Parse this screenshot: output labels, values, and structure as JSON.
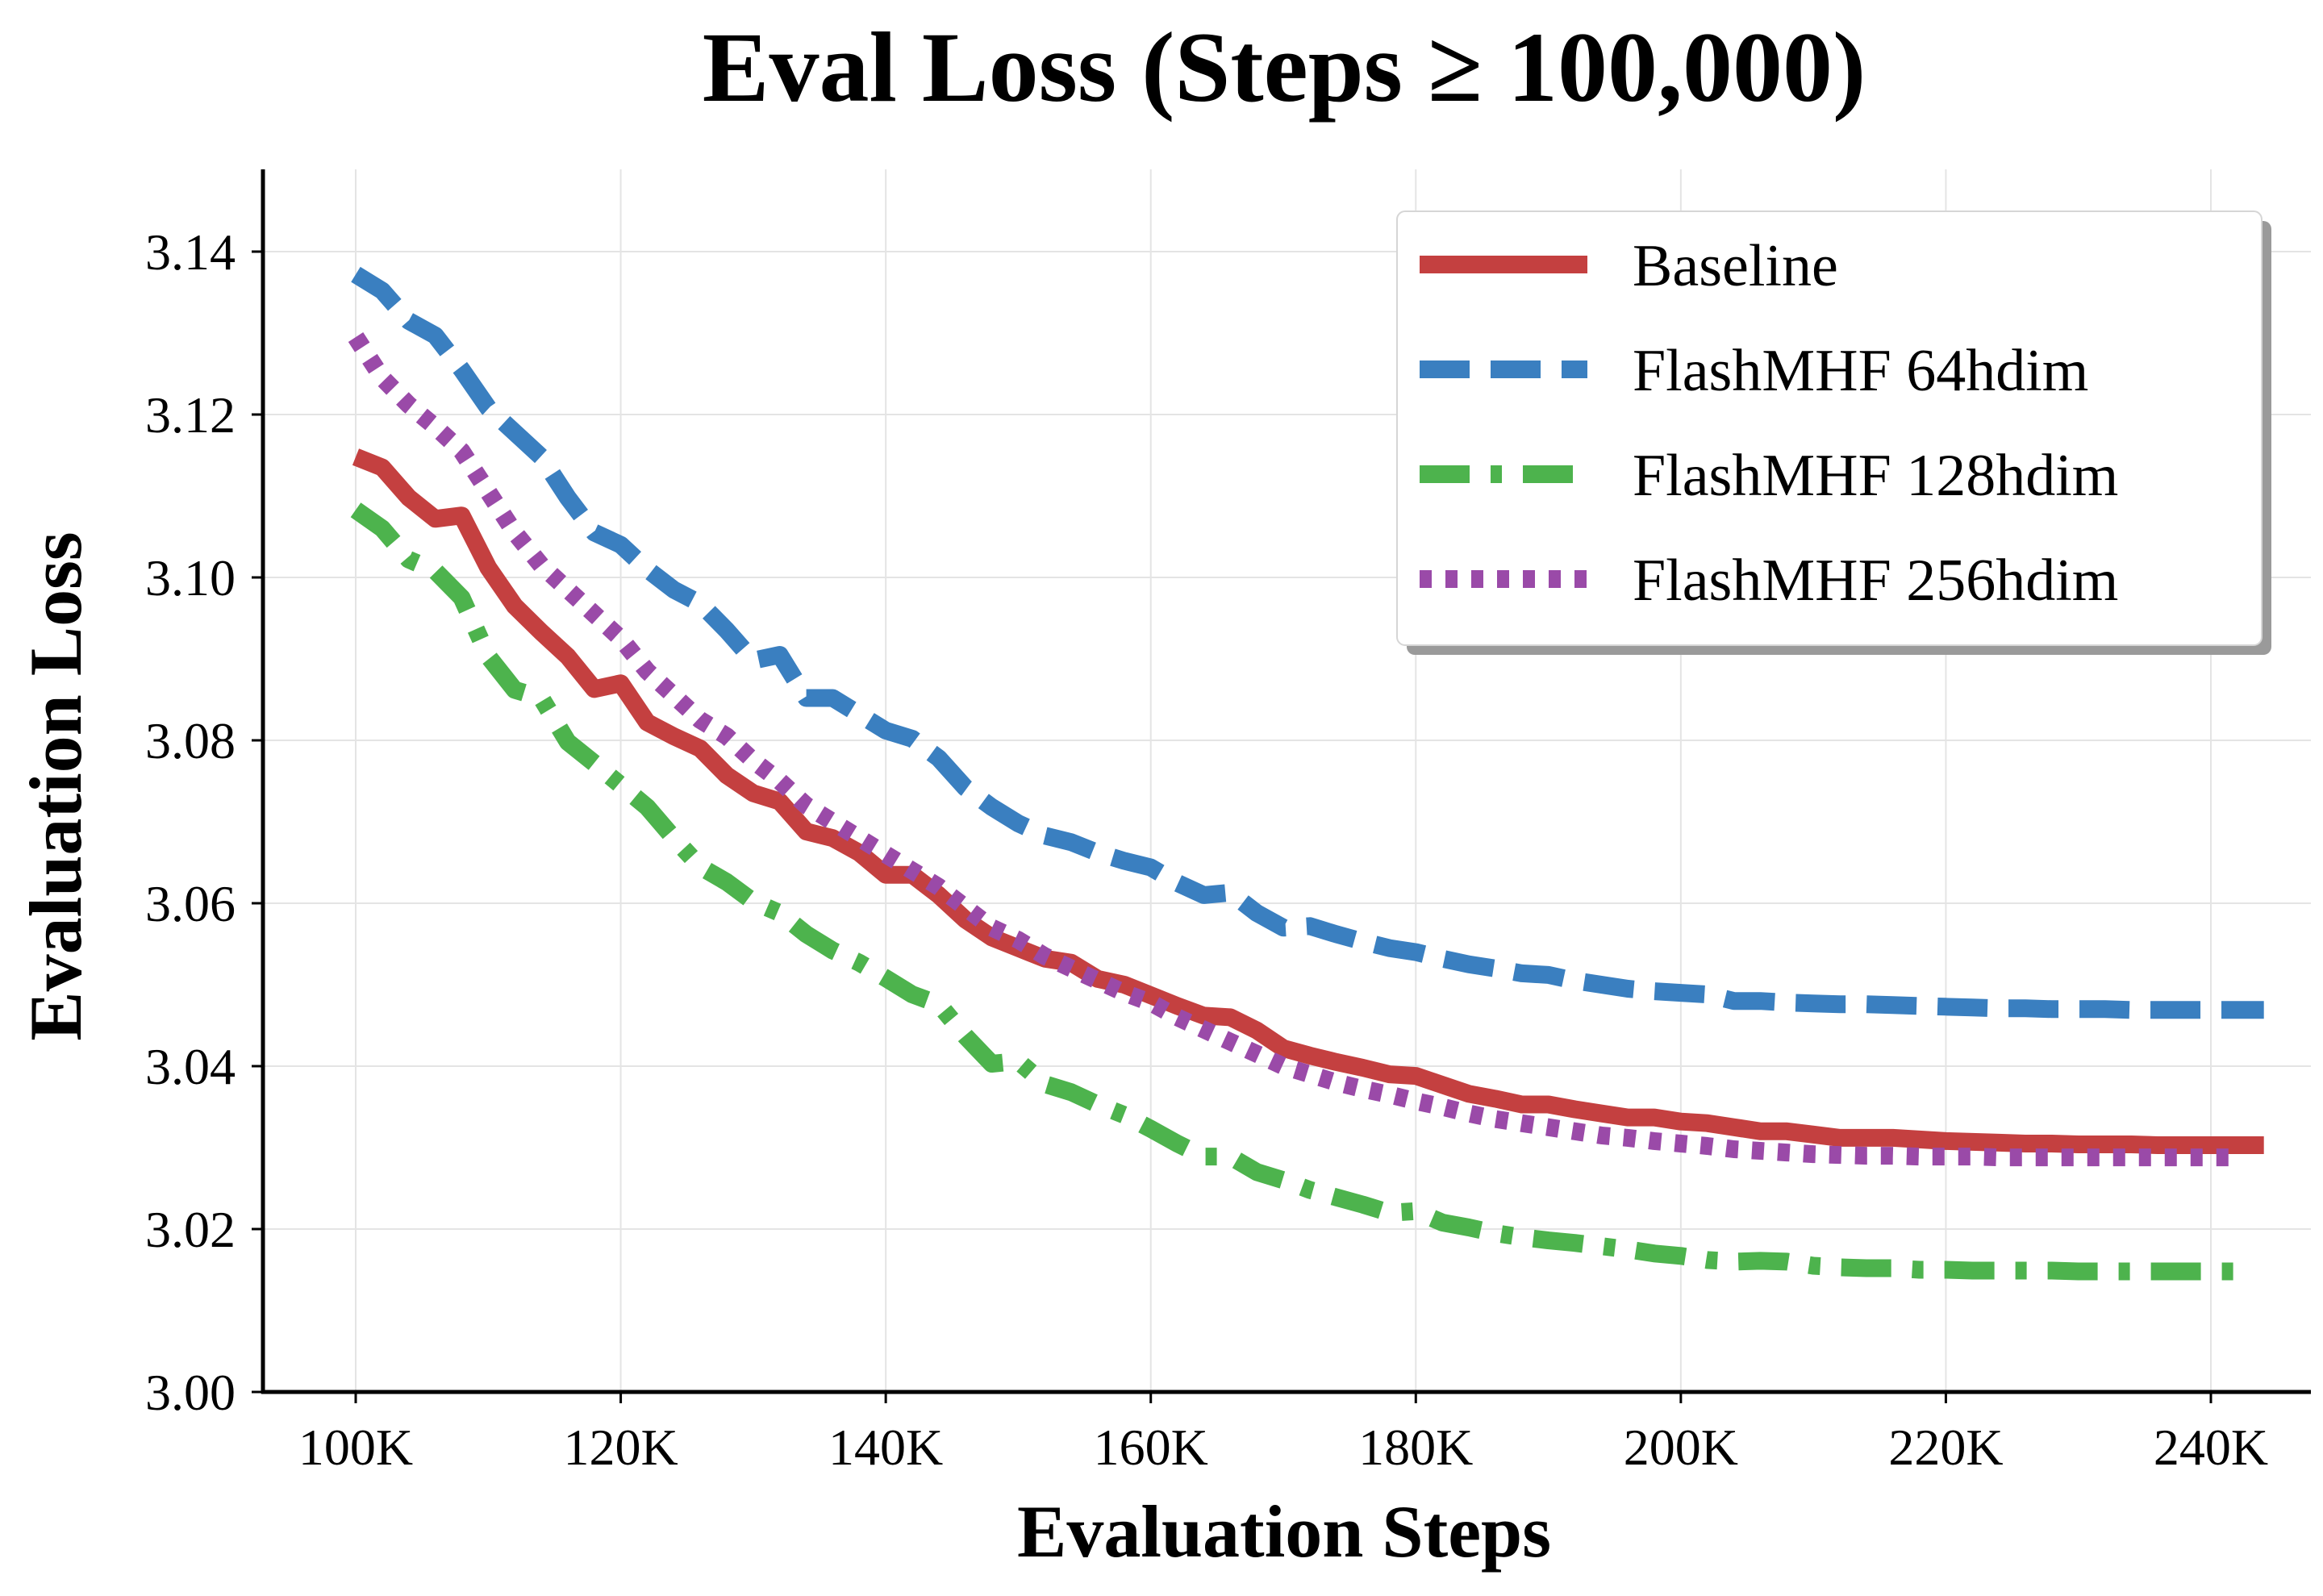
{
  "chart_data": {
    "type": "line",
    "title": "Eval Loss (Steps ≥ 100,000)",
    "xlabel": "Evaluation Steps",
    "ylabel": "Evaluation Loss",
    "xlim": [
      92500,
      253000
    ],
    "ylim": [
      3.0,
      3.15
    ],
    "xticks": [
      100000,
      120000,
      140000,
      160000,
      180000,
      200000,
      220000,
      240000
    ],
    "xtick_labels": [
      "100K",
      "120K",
      "140K",
      "160K",
      "180K",
      "200K",
      "220K",
      "240K"
    ],
    "yticks": [
      3.0,
      3.02,
      3.04,
      3.06,
      3.08,
      3.1,
      3.12,
      3.14
    ],
    "ytick_labels": [
      "3.00",
      "3.02",
      "3.04",
      "3.06",
      "3.08",
      "3.10",
      "3.12",
      "3.14"
    ],
    "grid": true,
    "legend_position": "top-right",
    "series": [
      {
        "name": "Baseline",
        "color": "#c44040",
        "style": "solid",
        "x": [
          100000,
          102000,
          104000,
          106000,
          108000,
          110000,
          112000,
          114000,
          116000,
          118000,
          120000,
          122000,
          124000,
          126000,
          128000,
          130000,
          132000,
          134000,
          136000,
          138000,
          140000,
          142000,
          144000,
          146000,
          148000,
          150000,
          152000,
          154000,
          156000,
          158000,
          160000,
          162000,
          164000,
          166000,
          168000,
          170000,
          172000,
          174000,
          176000,
          178000,
          180000,
          182000,
          184000,
          186000,
          188000,
          190000,
          192000,
          194000,
          196000,
          198000,
          200000,
          202000,
          204000,
          206000,
          208000,
          210000,
          212000,
          214000,
          216000,
          218000,
          220000,
          222000,
          224000,
          226000,
          228000,
          230000,
          232000,
          234000,
          236000,
          238000,
          240000,
          242000,
          244000
        ],
        "y": [
          3.1148,
          3.1135,
          3.1098,
          3.1072,
          3.1076,
          3.1012,
          3.0965,
          3.0933,
          3.0903,
          3.0863,
          3.087,
          3.0822,
          3.0805,
          3.079,
          3.0757,
          3.0735,
          3.0725,
          3.0688,
          3.068,
          3.0662,
          3.0635,
          3.0635,
          3.061,
          3.058,
          3.0558,
          3.0545,
          3.0532,
          3.0527,
          3.0507,
          3.05,
          3.0487,
          3.0474,
          3.0462,
          3.046,
          3.0444,
          3.0422,
          3.0413,
          3.0405,
          3.0398,
          3.039,
          3.0388,
          3.0377,
          3.0366,
          3.036,
          3.0353,
          3.0353,
          3.0347,
          3.0342,
          3.0337,
          3.0337,
          3.0332,
          3.033,
          3.0325,
          3.032,
          3.032,
          3.0316,
          3.0312,
          3.0312,
          3.0312,
          3.031,
          3.0308,
          3.0307,
          3.0306,
          3.0305,
          3.0305,
          3.0304,
          3.0304,
          3.0304,
          3.0303,
          3.0303,
          3.0303,
          3.0303,
          3.0303
        ]
      },
      {
        "name": "FlashMHF 64hdim",
        "color": "#3a7fc0",
        "style": "dashed",
        "x": [
          100000,
          102000,
          104000,
          106000,
          108000,
          110000,
          112000,
          114000,
          116000,
          118000,
          120000,
          122000,
          124000,
          126000,
          128000,
          130000,
          132000,
          134000,
          136000,
          138000,
          140000,
          142000,
          144000,
          146000,
          148000,
          150000,
          152000,
          154000,
          156000,
          158000,
          160000,
          162000,
          164000,
          166000,
          168000,
          170000,
          172000,
          174000,
          176000,
          178000,
          180000,
          182000,
          184000,
          186000,
          188000,
          190000,
          192000,
          194000,
          196000,
          198000,
          200000,
          202000,
          204000,
          206000,
          208000,
          210000,
          212000,
          214000,
          216000,
          218000,
          220000,
          222000,
          224000,
          226000,
          228000,
          230000,
          232000,
          234000,
          236000,
          238000,
          240000,
          242000,
          244000
        ],
        "y": [
          3.1372,
          3.1352,
          3.1315,
          3.1297,
          3.1255,
          3.1208,
          3.1178,
          3.1148,
          3.1098,
          3.1055,
          3.104,
          3.101,
          3.0985,
          3.0968,
          3.0935,
          3.0898,
          3.0905,
          3.0852,
          3.0852,
          3.0832,
          3.0812,
          3.0802,
          3.0778,
          3.0742,
          3.0718,
          3.0698,
          3.0683,
          3.0675,
          3.0662,
          3.0652,
          3.0644,
          3.0625,
          3.061,
          3.0613,
          3.0588,
          3.057,
          3.0572,
          3.0562,
          3.0553,
          3.0545,
          3.054,
          3.0532,
          3.0525,
          3.052,
          3.0514,
          3.0512,
          3.0505,
          3.05,
          3.0495,
          3.0492,
          3.049,
          3.0488,
          3.048,
          3.048,
          3.0478,
          3.0477,
          3.0476,
          3.0476,
          3.0475,
          3.0474,
          3.0473,
          3.0472,
          3.0471,
          3.0471,
          3.047,
          3.047,
          3.047,
          3.0469,
          3.0469,
          3.0469,
          3.0469,
          3.0469,
          3.0469
        ]
      },
      {
        "name": "FlashMHF 128hdim",
        "color": "#4db34d",
        "style": "dashdot",
        "x": [
          100000,
          102000,
          104000,
          106000,
          108000,
          110000,
          112000,
          114000,
          116000,
          118000,
          120000,
          122000,
          124000,
          126000,
          128000,
          130000,
          132000,
          134000,
          136000,
          138000,
          140000,
          142000,
          144000,
          146000,
          148000,
          150000,
          152000,
          154000,
          156000,
          158000,
          160000,
          162000,
          164000,
          166000,
          168000,
          170000,
          172000,
          174000,
          176000,
          178000,
          180000,
          182000,
          184000,
          186000,
          188000,
          190000,
          192000,
          194000,
          196000,
          198000,
          200000,
          202000,
          204000,
          206000,
          208000,
          210000,
          212000,
          214000,
          216000,
          218000,
          220000,
          222000,
          224000,
          226000,
          228000,
          230000,
          232000,
          234000,
          236000,
          238000,
          240000,
          242000
        ],
        "y": [
          3.1083,
          3.106,
          3.1022,
          3.1008,
          3.0975,
          3.0903,
          3.0862,
          3.0852,
          3.0798,
          3.0772,
          3.0745,
          3.0718,
          3.068,
          3.0645,
          3.0626,
          3.0602,
          3.0588,
          3.0562,
          3.0542,
          3.0527,
          3.0508,
          3.0488,
          3.0476,
          3.0437,
          3.0403,
          3.0406,
          3.0378,
          3.0368,
          3.0353,
          3.034,
          3.0323,
          3.0305,
          3.0289,
          3.0289,
          3.027,
          3.026,
          3.0248,
          3.0239,
          3.023,
          3.022,
          3.0222,
          3.0208,
          3.0202,
          3.0195,
          3.019,
          3.0186,
          3.0183,
          3.0179,
          3.0175,
          3.017,
          3.0167,
          3.0162,
          3.016,
          3.0161,
          3.016,
          3.0155,
          3.0153,
          3.0152,
          3.0152,
          3.015,
          3.015,
          3.0149,
          3.0149,
          3.0149,
          3.0149,
          3.0148,
          3.0148,
          3.0148,
          3.0148,
          3.0148,
          3.0148,
          3.0148
        ]
      },
      {
        "name": "FlashMHF 256hdim",
        "color": "#9a4aa8",
        "style": "dotted",
        "x": [
          100000,
          102000,
          104000,
          106000,
          108000,
          110000,
          112000,
          114000,
          116000,
          118000,
          120000,
          122000,
          124000,
          126000,
          128000,
          130000,
          132000,
          134000,
          136000,
          138000,
          140000,
          142000,
          144000,
          146000,
          148000,
          150000,
          152000,
          154000,
          156000,
          158000,
          160000,
          162000,
          164000,
          166000,
          168000,
          170000,
          172000,
          174000,
          176000,
          178000,
          180000,
          182000,
          184000,
          186000,
          188000,
          190000,
          192000,
          194000,
          196000,
          198000,
          200000,
          202000,
          204000,
          206000,
          208000,
          210000,
          212000,
          214000,
          216000,
          218000,
          220000,
          222000,
          224000,
          226000,
          228000,
          230000,
          232000,
          234000,
          236000,
          238000,
          240000,
          242000
        ],
        "y": [
          3.1295,
          3.1245,
          3.1212,
          3.1185,
          3.1155,
          3.1105,
          3.1055,
          3.1015,
          3.0985,
          3.0955,
          3.0925,
          3.0885,
          3.0855,
          3.0825,
          3.0805,
          3.0775,
          3.075,
          3.072,
          3.07,
          3.068,
          3.066,
          3.064,
          3.062,
          3.0595,
          3.057,
          3.0555,
          3.0535,
          3.052,
          3.0505,
          3.049,
          3.0478,
          3.046,
          3.0445,
          3.043,
          3.0415,
          3.04,
          3.039,
          3.038,
          3.0372,
          3.0365,
          3.0357,
          3.035,
          3.0342,
          3.0335,
          3.033,
          3.0325,
          3.032,
          3.0315,
          3.0312,
          3.0308,
          3.0305,
          3.0302,
          3.0298,
          3.0296,
          3.0294,
          3.0292,
          3.0291,
          3.029,
          3.029,
          3.0289,
          3.0289,
          3.0289,
          3.0288,
          3.0288,
          3.0288,
          3.0288,
          3.0288,
          3.0288,
          3.0288,
          3.0288,
          3.0288,
          3.0288
        ]
      }
    ]
  }
}
